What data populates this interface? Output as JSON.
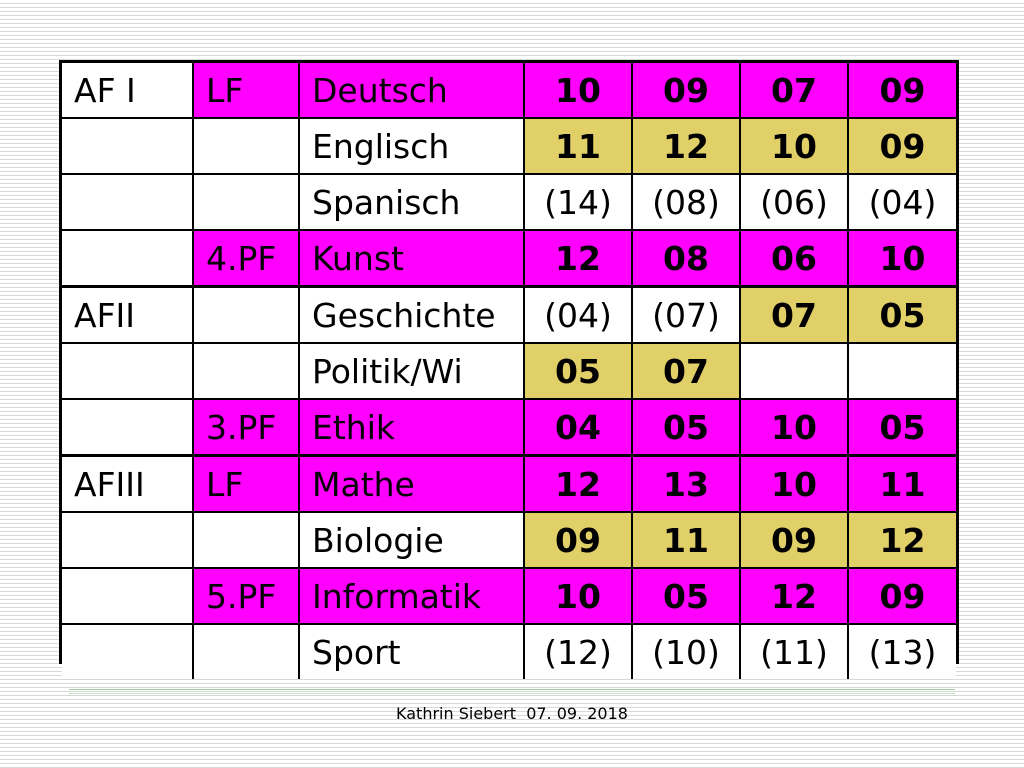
{
  "colors": {
    "magenta": "#ff00ff",
    "gold": "#e1cf68",
    "white": "#ffffff"
  },
  "rows": [
    {
      "area": "AF I",
      "level": "LF",
      "subject": "Deutsch",
      "bg": "magenta",
      "cells": [
        {
          "v": "10",
          "bold": true,
          "bg": "magenta"
        },
        {
          "v": "09",
          "bold": true,
          "bg": "magenta"
        },
        {
          "v": "07",
          "bold": true,
          "bg": "magenta"
        },
        {
          "v": "09",
          "bold": true,
          "bg": "magenta"
        }
      ]
    },
    {
      "area": "",
      "level": "",
      "subject": "Englisch",
      "bg": "white",
      "cells": [
        {
          "v": "11",
          "bold": true,
          "bg": "gold"
        },
        {
          "v": "12",
          "bold": true,
          "bg": "gold"
        },
        {
          "v": "10",
          "bold": true,
          "bg": "gold"
        },
        {
          "v": "09",
          "bold": true,
          "bg": "gold"
        }
      ]
    },
    {
      "area": "",
      "level": "",
      "subject": "Spanisch",
      "bg": "white",
      "cells": [
        {
          "v": "(14)",
          "bold": false,
          "bg": "white"
        },
        {
          "v": "(08)",
          "bold": false,
          "bg": "white"
        },
        {
          "v": "(06)",
          "bold": false,
          "bg": "white"
        },
        {
          "v": "(04)",
          "bold": false,
          "bg": "white"
        }
      ]
    },
    {
      "area": "",
      "level": "4.PF",
      "subject": "Kunst",
      "bg": "magenta",
      "cells": [
        {
          "v": "12",
          "bold": true,
          "bg": "magenta"
        },
        {
          "v": "08",
          "bold": true,
          "bg": "magenta"
        },
        {
          "v": "06",
          "bold": true,
          "bg": "magenta"
        },
        {
          "v": "10",
          "bold": true,
          "bg": "magenta"
        }
      ]
    },
    {
      "area": "AFII",
      "level": "",
      "subject": "Geschichte",
      "bg": "white",
      "group_start": true,
      "cells": [
        {
          "v": "(04)",
          "bold": false,
          "bg": "white"
        },
        {
          "v": "(07)",
          "bold": false,
          "bg": "white"
        },
        {
          "v": "07",
          "bold": true,
          "bg": "gold"
        },
        {
          "v": "05",
          "bold": true,
          "bg": "gold"
        }
      ]
    },
    {
      "area": "",
      "level": "",
      "subject": "Politik/Wi",
      "bg": "white",
      "cells": [
        {
          "v": "05",
          "bold": true,
          "bg": "gold"
        },
        {
          "v": "07",
          "bold": true,
          "bg": "gold"
        },
        {
          "v": "",
          "bold": false,
          "bg": "white"
        },
        {
          "v": "",
          "bold": false,
          "bg": "white"
        }
      ]
    },
    {
      "area": "",
      "level": "3.PF",
      "subject": "Ethik",
      "bg": "magenta",
      "cells": [
        {
          "v": "04",
          "bold": true,
          "bg": "magenta"
        },
        {
          "v": "05",
          "bold": true,
          "bg": "magenta"
        },
        {
          "v": "10",
          "bold": true,
          "bg": "magenta"
        },
        {
          "v": "05",
          "bold": true,
          "bg": "magenta"
        }
      ]
    },
    {
      "area": "AFIII",
      "level": "LF",
      "subject": "Mathe",
      "bg": "magenta",
      "group_start": true,
      "cells": [
        {
          "v": "12",
          "bold": true,
          "bg": "magenta"
        },
        {
          "v": "13",
          "bold": true,
          "bg": "magenta"
        },
        {
          "v": "10",
          "bold": true,
          "bg": "magenta"
        },
        {
          "v": "11",
          "bold": true,
          "bg": "magenta"
        }
      ]
    },
    {
      "area": "",
      "level": "",
      "subject": "Biologie",
      "bg": "white",
      "cells": [
        {
          "v": "09",
          "bold": true,
          "bg": "gold"
        },
        {
          "v": "11",
          "bold": true,
          "bg": "gold"
        },
        {
          "v": "09",
          "bold": true,
          "bg": "gold"
        },
        {
          "v": "12",
          "bold": true,
          "bg": "gold"
        }
      ]
    },
    {
      "area": "",
      "level": "5.PF",
      "subject": "Informatik",
      "bg": "magenta",
      "cells": [
        {
          "v": "10",
          "bold": true,
          "bg": "magenta"
        },
        {
          "v": "05",
          "bold": true,
          "bg": "magenta"
        },
        {
          "v": "12",
          "bold": true,
          "bg": "magenta"
        },
        {
          "v": "09",
          "bold": true,
          "bg": "magenta"
        }
      ]
    },
    {
      "area": "",
      "level": "",
      "subject": "Sport",
      "bg": "white",
      "cells": [
        {
          "v": "(12)",
          "bold": false,
          "bg": "white"
        },
        {
          "v": "(10)",
          "bold": false,
          "bg": "white"
        },
        {
          "v": "(11)",
          "bold": false,
          "bg": "white"
        },
        {
          "v": "(13)",
          "bold": false,
          "bg": "white"
        }
      ]
    }
  ],
  "footer": {
    "author": "Kathrin Siebert",
    "date": "07. 09. 2018"
  }
}
